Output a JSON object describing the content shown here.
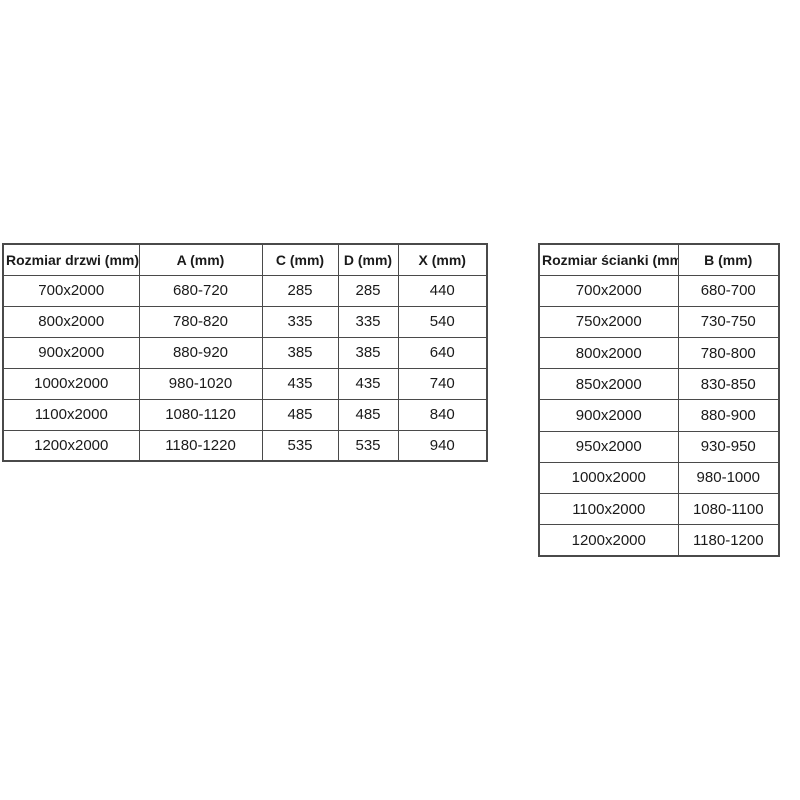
{
  "page": {
    "background": "#ffffff",
    "text_color": "#1a1a1a",
    "border_color": "#4a4a4a"
  },
  "door_table": {
    "headers": [
      "Rozmiar drzwi (mm)",
      "A (mm)",
      "C (mm)",
      "D (mm)",
      "X (mm)"
    ],
    "rows": [
      [
        "700x2000",
        "680-720",
        "285",
        "285",
        "440"
      ],
      [
        "800x2000",
        "780-820",
        "335",
        "335",
        "540"
      ],
      [
        "900x2000",
        "880-920",
        "385",
        "385",
        "640"
      ],
      [
        "1000x2000",
        "980-1020",
        "435",
        "435",
        "740"
      ],
      [
        "1100x2000",
        "1080-1120",
        "485",
        "485",
        "840"
      ],
      [
        "1200x2000",
        "1180-1220",
        "535",
        "535",
        "940"
      ]
    ]
  },
  "wall_table": {
    "headers": [
      "Rozmiar ścianki (mm)",
      "B (mm)"
    ],
    "rows": [
      [
        "700x2000",
        "680-700"
      ],
      [
        "750x2000",
        "730-750"
      ],
      [
        "800x2000",
        "780-800"
      ],
      [
        "850x2000",
        "830-850"
      ],
      [
        "900x2000",
        "880-900"
      ],
      [
        "950x2000",
        "930-950"
      ],
      [
        "1000x2000",
        "980-1000"
      ],
      [
        "1100x2000",
        "1080-1100"
      ],
      [
        "1200x2000",
        "1180-1200"
      ]
    ]
  }
}
